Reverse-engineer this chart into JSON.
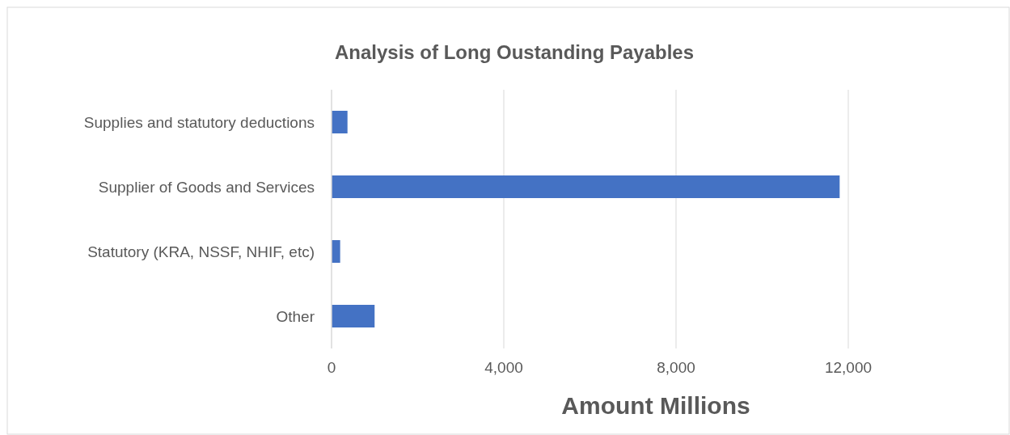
{
  "chart_data": {
    "type": "bar",
    "orientation": "horizontal",
    "title": "Analysis of Long Oustanding Payables",
    "xlabel": "Amount Millions",
    "categories": [
      "Supplies and statutory deductions",
      "Supplier of Goods and Services",
      "Statutory (KRA, NSSF, NHIF, etc)",
      "Other"
    ],
    "values": [
      370,
      11800,
      200,
      1000
    ],
    "color": "#4472c4",
    "xlim": [
      0,
      12000
    ],
    "xticks": [
      {
        "value": 0,
        "label": "0"
      },
      {
        "value": 4000,
        "label": "4,000"
      },
      {
        "value": 8000,
        "label": "8,000"
      },
      {
        "value": 12000,
        "label": "12,000"
      }
    ],
    "grid": "x"
  }
}
